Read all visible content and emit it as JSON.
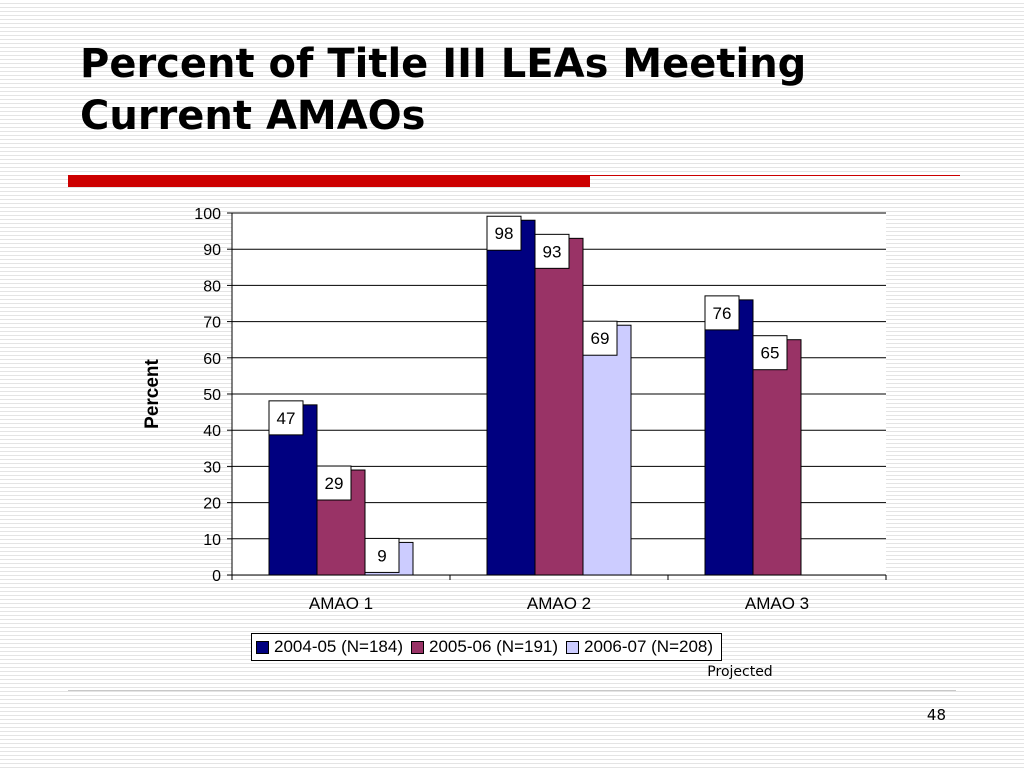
{
  "slide": {
    "title": "Percent of Title III LEAs Meeting Current AMAOs",
    "page_number": "48",
    "note": "Projected"
  },
  "chart_data": {
    "type": "bar",
    "categories": [
      "AMAO 1",
      "AMAO 2",
      "AMAO 3"
    ],
    "series": [
      {
        "name": "2004-05 (N=184)",
        "color": "#000080",
        "values": [
          47,
          98,
          76
        ]
      },
      {
        "name": "2005-06 (N=191)",
        "color": "#993366",
        "values": [
          29,
          93,
          65
        ]
      },
      {
        "name": "2006-07 (N=208)",
        "color": "#ccccff",
        "values": [
          9,
          69,
          null
        ]
      }
    ],
    "title": "",
    "xlabel": "",
    "ylabel": "Percent",
    "ylim": [
      0,
      100
    ],
    "yticks": [
      "0",
      "10",
      "20",
      "30",
      "40",
      "50",
      "60",
      "70",
      "80",
      "90",
      "100"
    ],
    "grid": true,
    "legend_position": "bottom"
  }
}
